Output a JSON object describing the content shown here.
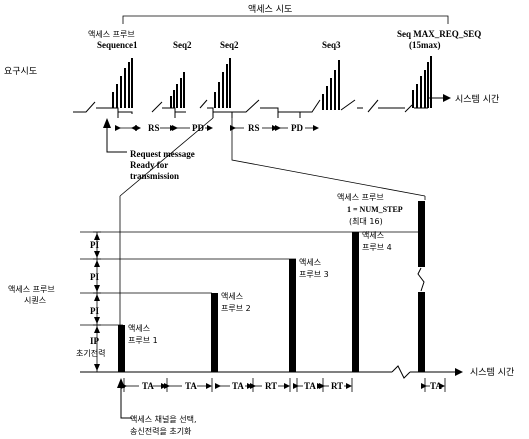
{
  "top": {
    "access_attempt": "액세스 시도",
    "probe_label": "액세스 프루브",
    "sequence1": "Sequence1",
    "seq2a": "Seq2",
    "seq2b": "Seq2",
    "seq3": "Seq3",
    "seq_max": "Seq MAX_REQ_SEQ",
    "seq_max_sub": "(15max)",
    "request_label": "요구시도",
    "rs1": "RS",
    "pd1": "PD",
    "rs2": "RS",
    "pd2": "PD",
    "system_time": "시스템 시간",
    "request_msg_1": "Request message",
    "request_msg_2": "Ready for",
    "request_msg_3": "transmission"
  },
  "bottom": {
    "pi1": "PI",
    "pi2": "PI",
    "pi3": "PI",
    "ip": "IP",
    "initial_power": "초기전력",
    "probe_seq_1": "액세스 프루브",
    "probe_seq_2": "시퀀스",
    "probe1_a": "액세스",
    "probe1_b": "프루브 1",
    "probe2_a": "액세스",
    "probe2_b": "프루브 2",
    "probe3_a": "액세스",
    "probe3_b": "프루브 3",
    "probe4_a": "액세스",
    "probe4_b": "프루브 4",
    "probeN_1": "액세스 프루브",
    "probeN_2": "1 = NUM_STEP",
    "probeN_3": "(최대 16)",
    "ta1": "TA",
    "ta2": "TA",
    "ta3": "TA",
    "rt1": "RT",
    "ta4": "TA",
    "rt2": "RT",
    "ta5": "TA",
    "system_time": "시스템 시간",
    "note_1": "액세스 채널을 선택,",
    "note_2": "송신전력을 초기화"
  }
}
